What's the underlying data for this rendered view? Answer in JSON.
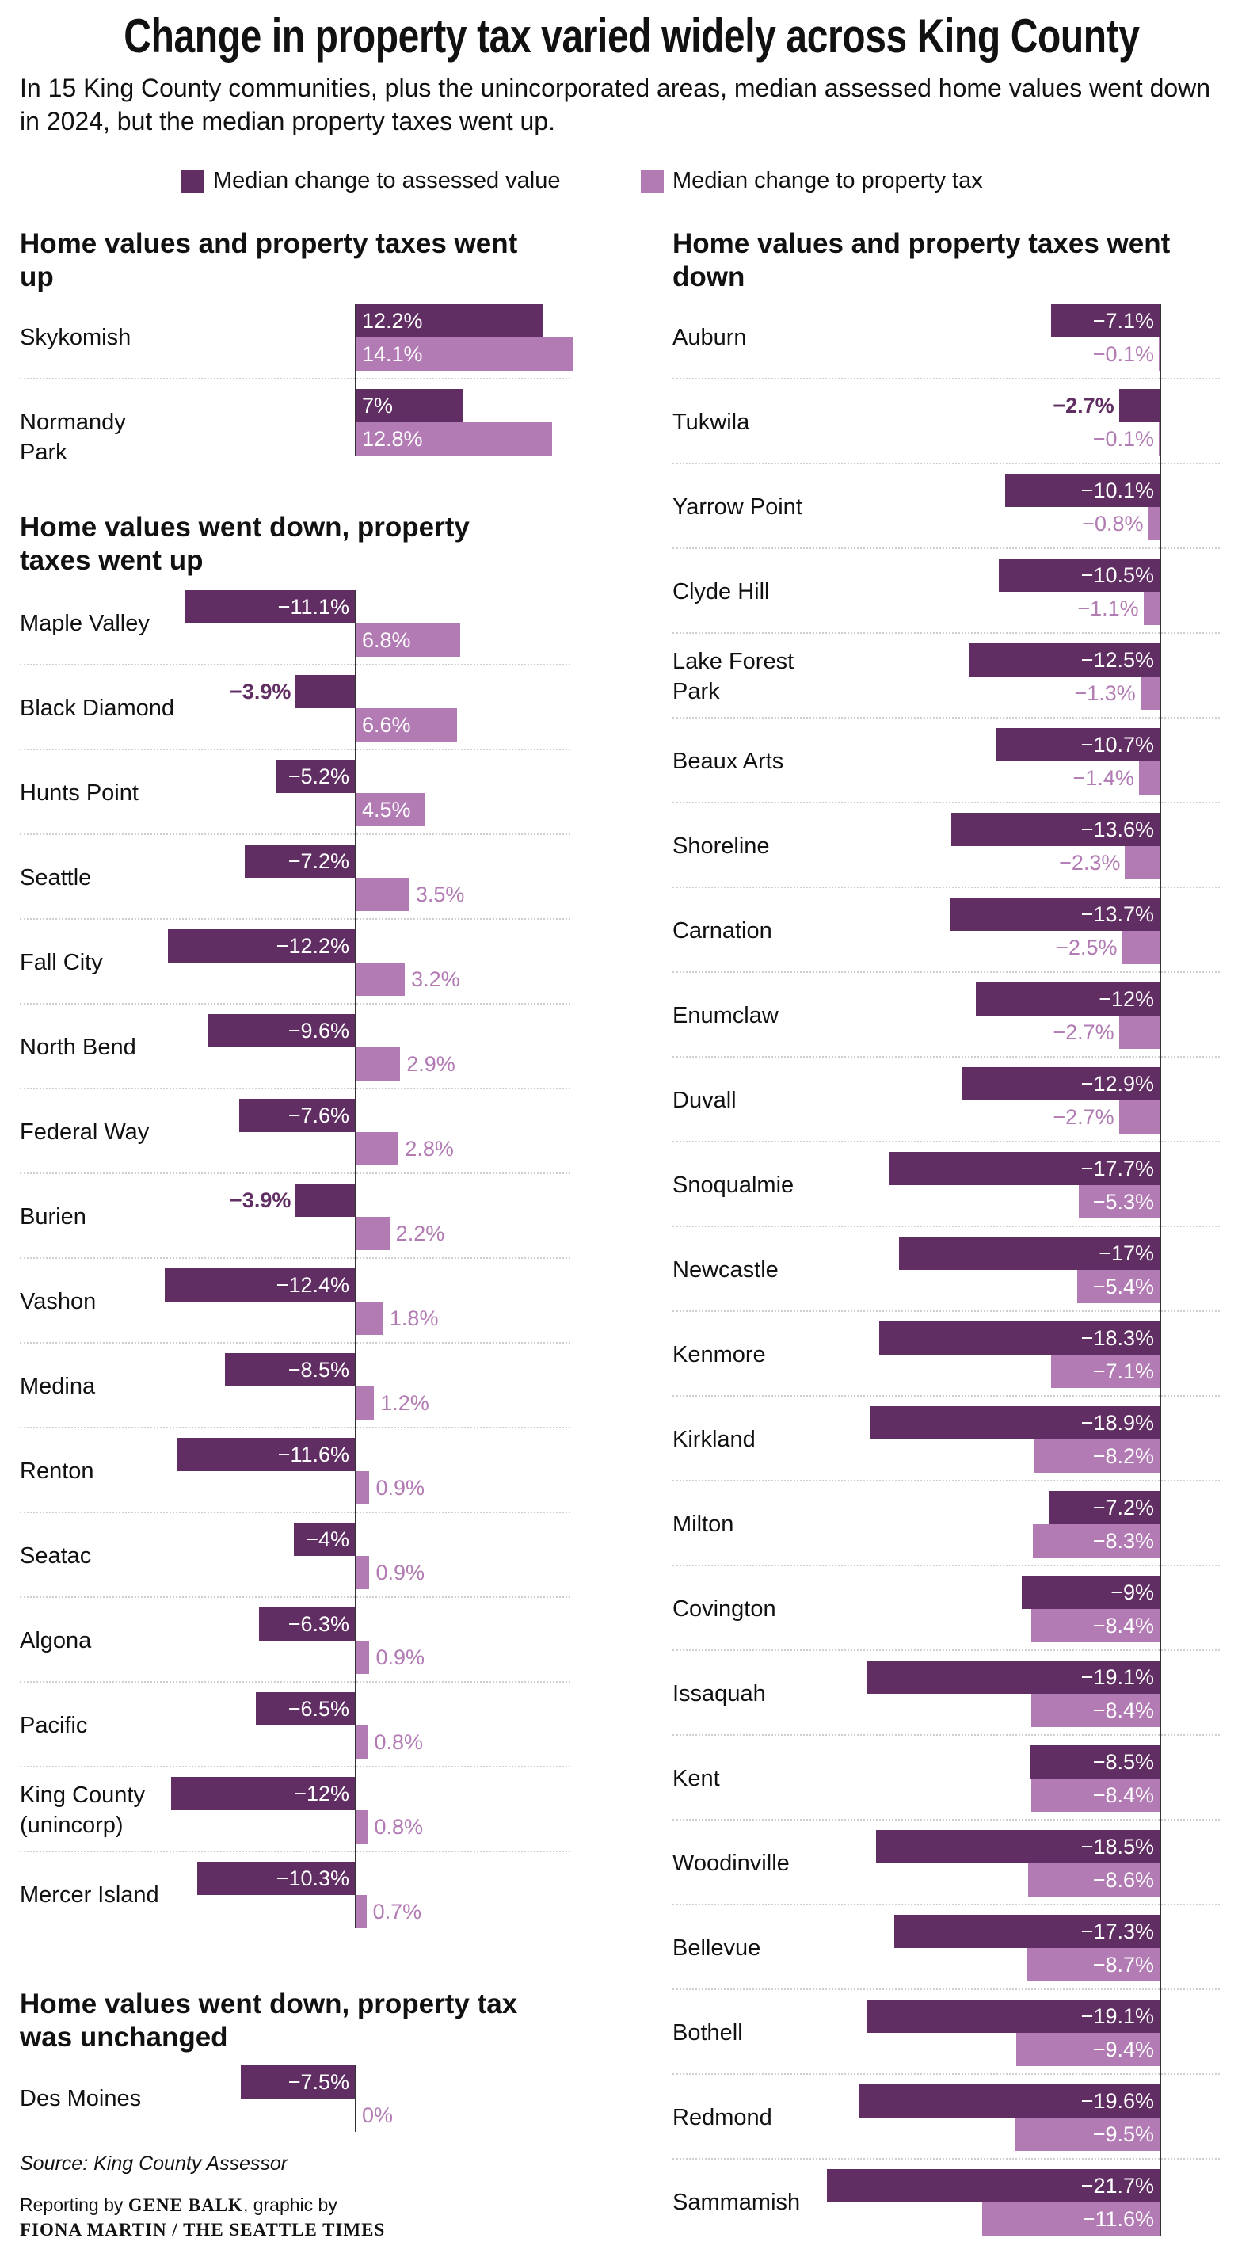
{
  "title": "Change in property tax varied widely across King County",
  "subtitle": "In 15 King County communities, plus the unincorporated areas, median assessed home values went down in 2024, but the median property taxes went up.",
  "legend": {
    "value_label": "Median change to assessed value",
    "tax_label": "Median change to property tax"
  },
  "colors": {
    "value": "#612e63",
    "tax": "#b27bb4"
  },
  "source": "Source: King County Assessor",
  "credit": {
    "prefix": "Reporting by ",
    "reporter": "GENE BALK",
    "middle": ", graphic by",
    "graphic": "FIONA MARTIN / THE SEATTLE TIMES"
  },
  "chart_data": {
    "type": "bar",
    "orientation": "horizontal",
    "unit": "%",
    "series_names": [
      "Median change to assessed value",
      "Median change to property tax"
    ],
    "sections": [
      {
        "id": "up-up",
        "column": "left",
        "title": "Home values and property taxes went up",
        "rows": [
          {
            "name": "Skykomish",
            "value": 12.2,
            "tax": 14.1
          },
          {
            "name": "Normandy Park",
            "value": 7,
            "tax": 12.8
          }
        ]
      },
      {
        "id": "down-up",
        "column": "left",
        "title": "Home values went down, property taxes went up",
        "rows": [
          {
            "name": "Maple Valley",
            "value": -11.1,
            "tax": 6.8
          },
          {
            "name": "Black Diamond",
            "value": -3.9,
            "tax": 6.6
          },
          {
            "name": "Hunts Point",
            "value": -5.2,
            "tax": 4.5
          },
          {
            "name": "Seattle",
            "value": -7.2,
            "tax": 3.5
          },
          {
            "name": "Fall City",
            "value": -12.2,
            "tax": 3.2
          },
          {
            "name": "North Bend",
            "value": -9.6,
            "tax": 2.9
          },
          {
            "name": "Federal Way",
            "value": -7.6,
            "tax": 2.8
          },
          {
            "name": "Burien",
            "value": -3.9,
            "tax": 2.2
          },
          {
            "name": "Vashon",
            "value": -12.4,
            "tax": 1.8
          },
          {
            "name": "Medina",
            "value": -8.5,
            "tax": 1.2
          },
          {
            "name": "Renton",
            "value": -11.6,
            "tax": 0.9
          },
          {
            "name": "Seatac",
            "value": -4,
            "tax": 0.9
          },
          {
            "name": "Algona",
            "value": -6.3,
            "tax": 0.9
          },
          {
            "name": "Pacific",
            "value": -6.5,
            "tax": 0.8
          },
          {
            "name": "King County (unincorp)",
            "value": -12,
            "tax": 0.8
          },
          {
            "name": "Mercer Island",
            "value": -10.3,
            "tax": 0.7
          }
        ]
      },
      {
        "id": "down-same",
        "column": "left",
        "title": "Home values went down, property tax was unchanged",
        "rows": [
          {
            "name": "Des Moines",
            "value": -7.5,
            "tax": 0
          }
        ]
      },
      {
        "id": "down-down",
        "column": "right",
        "title": "Home values and property taxes went down",
        "rows": [
          {
            "name": "Auburn",
            "value": -7.1,
            "tax": -0.1
          },
          {
            "name": "Tukwila",
            "value": -2.7,
            "tax": -0.1
          },
          {
            "name": "Yarrow Point",
            "value": -10.1,
            "tax": -0.8
          },
          {
            "name": "Clyde Hill",
            "value": -10.5,
            "tax": -1.1
          },
          {
            "name": "Lake Forest Park",
            "value": -12.5,
            "tax": -1.3
          },
          {
            "name": "Beaux Arts",
            "value": -10.7,
            "tax": -1.4
          },
          {
            "name": "Shoreline",
            "value": -13.6,
            "tax": -2.3
          },
          {
            "name": "Carnation",
            "value": -13.7,
            "tax": -2.5
          },
          {
            "name": "Enumclaw",
            "value": -12,
            "tax": -2.7
          },
          {
            "name": "Duvall",
            "value": -12.9,
            "tax": -2.7
          },
          {
            "name": "Snoqualmie",
            "value": -17.7,
            "tax": -5.3
          },
          {
            "name": "Newcastle",
            "value": -17,
            "tax": -5.4
          },
          {
            "name": "Kenmore",
            "value": -18.3,
            "tax": -7.1
          },
          {
            "name": "Kirkland",
            "value": -18.9,
            "tax": -8.2
          },
          {
            "name": "Milton",
            "value": -7.2,
            "tax": -8.3
          },
          {
            "name": "Covington",
            "value": -9,
            "tax": -8.4
          },
          {
            "name": "Issaquah",
            "value": -19.1,
            "tax": -8.4
          },
          {
            "name": "Kent",
            "value": -8.5,
            "tax": -8.4
          },
          {
            "name": "Woodinville",
            "value": -18.5,
            "tax": -8.6
          },
          {
            "name": "Bellevue",
            "value": -17.3,
            "tax": -8.7
          },
          {
            "name": "Bothell",
            "value": -19.1,
            "tax": -9.4
          },
          {
            "name": "Redmond",
            "value": -19.6,
            "tax": -9.5
          },
          {
            "name": "Sammamish",
            "value": -21.7,
            "tax": -11.6
          }
        ]
      }
    ]
  }
}
